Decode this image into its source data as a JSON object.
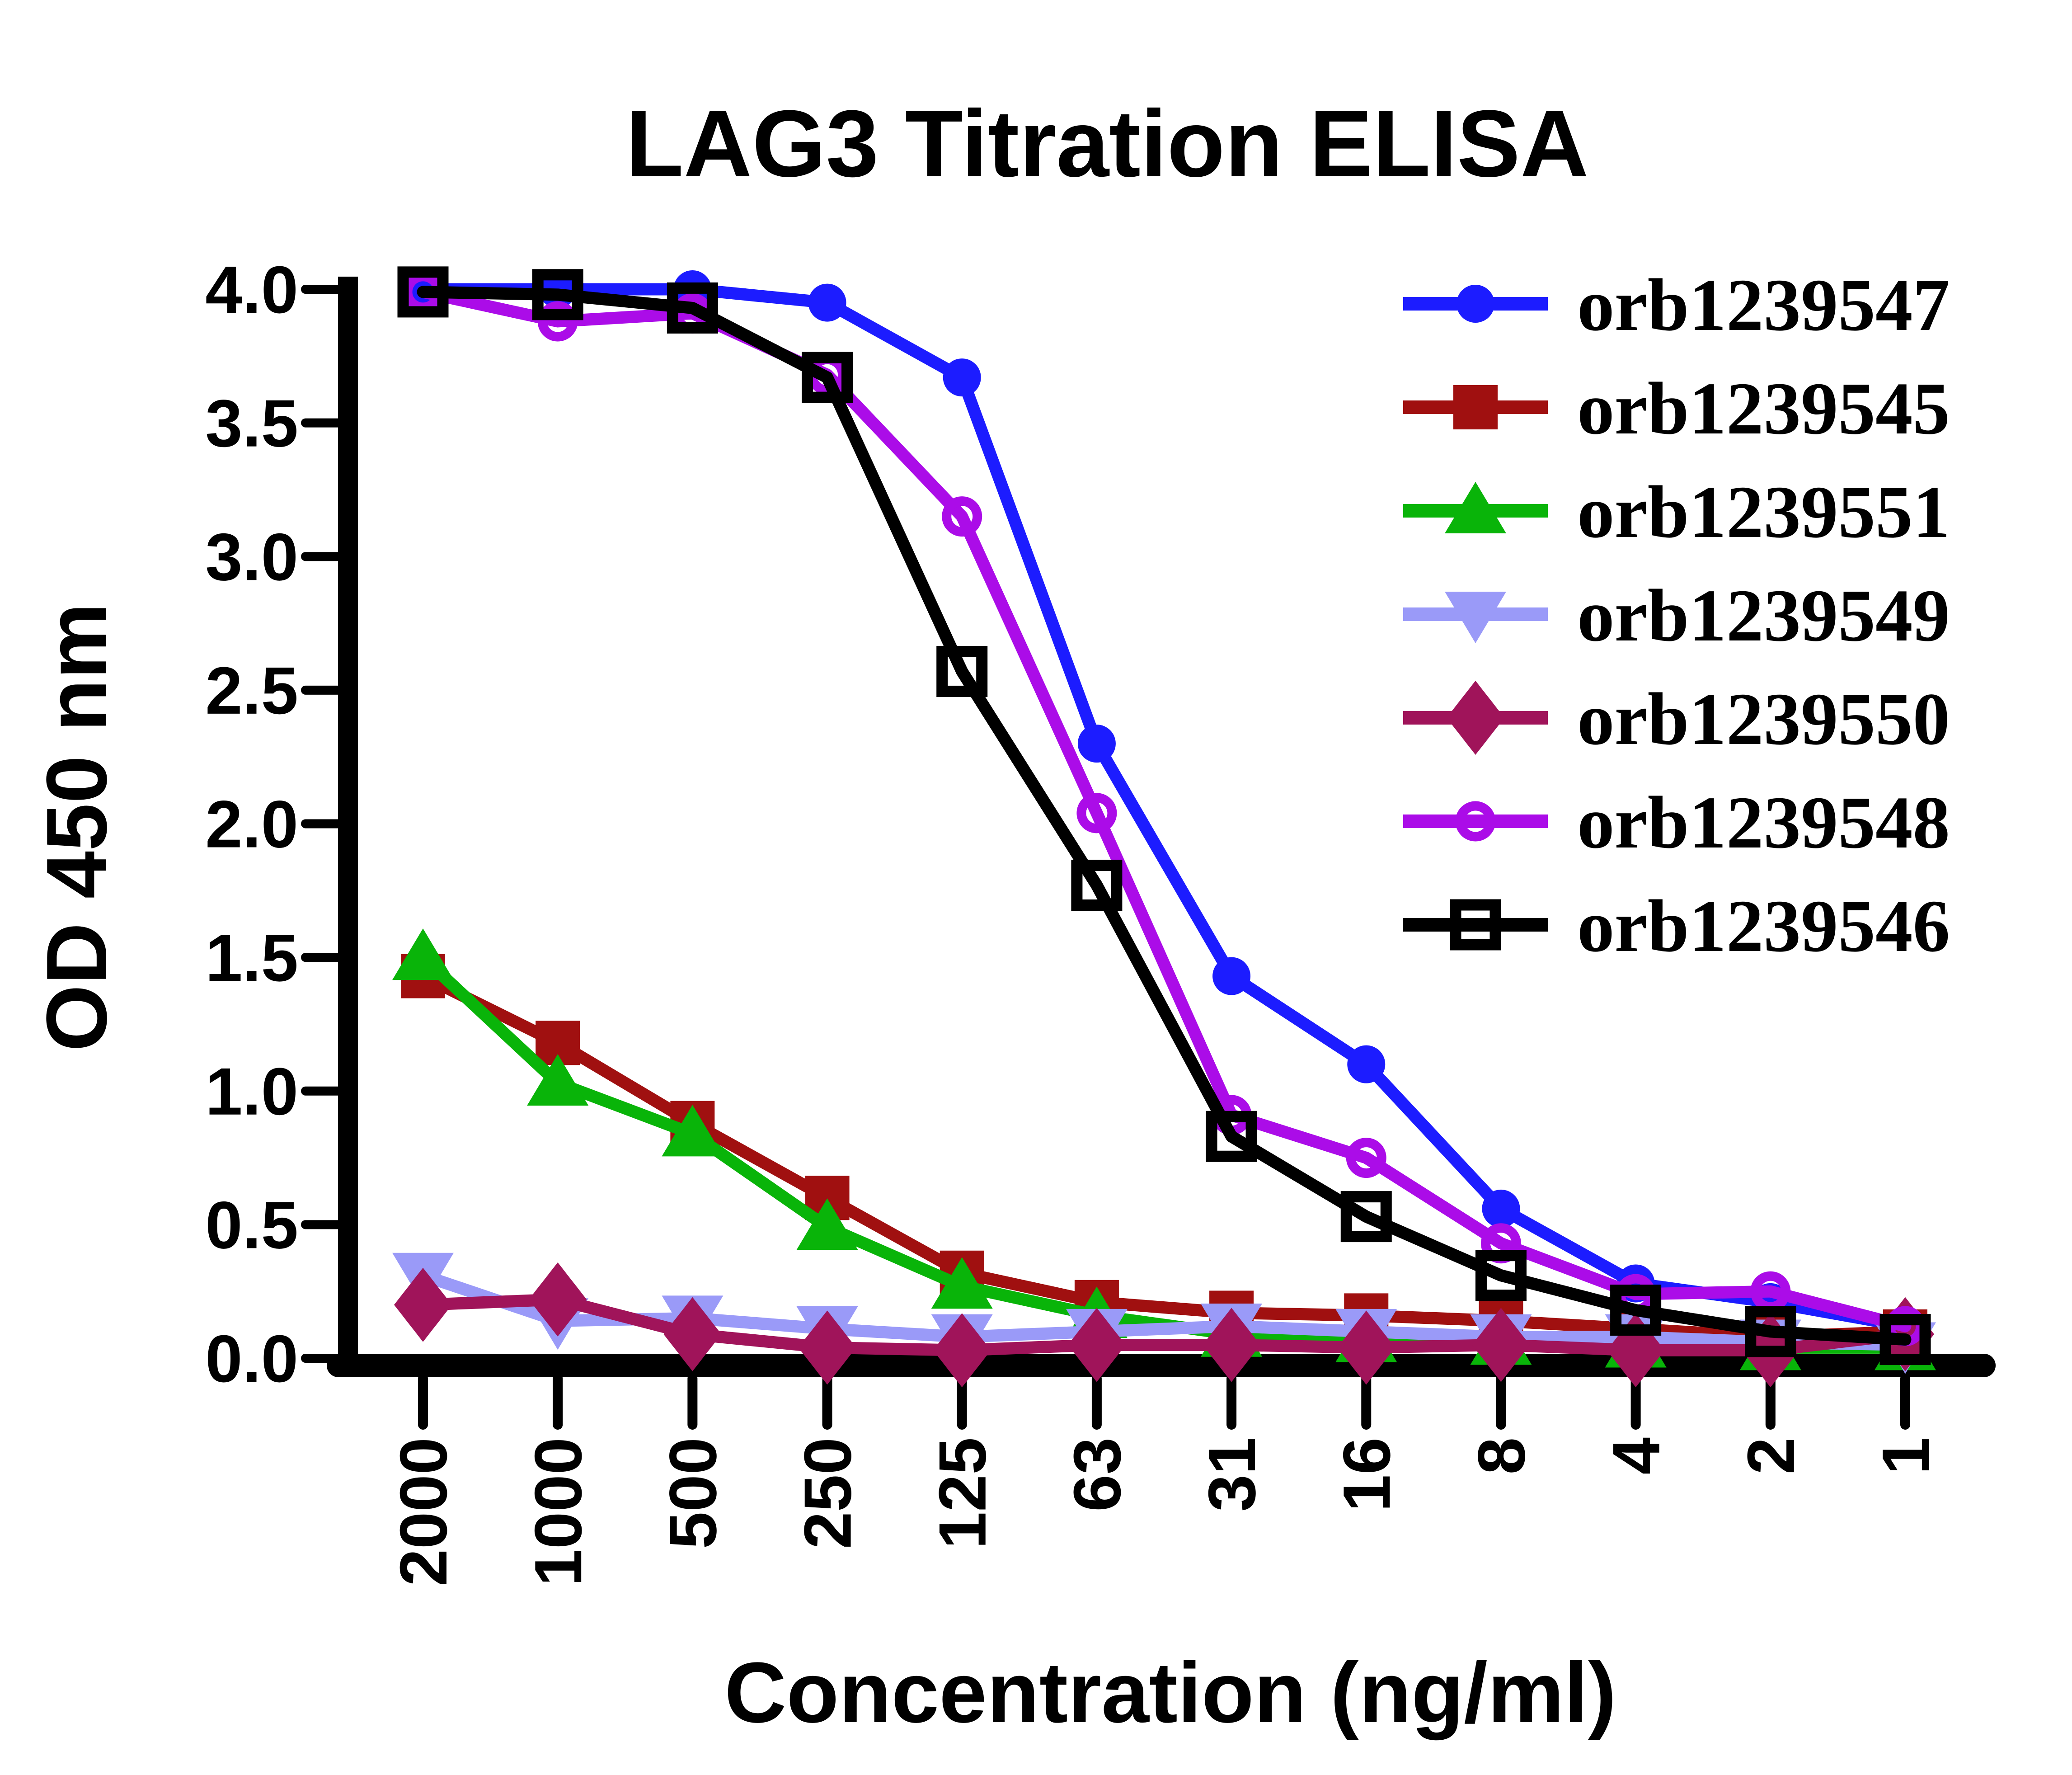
{
  "figure": {
    "background": "#ffffff",
    "axis_color": "#000000"
  },
  "chart_data": {
    "type": "line",
    "title": "LAG3 Titration ELISA",
    "xlabel": "Concentration (ng/ml)",
    "ylabel": "OD 450 nm",
    "categories": [
      "2000",
      "1000",
      "500",
      "250",
      "125",
      "63",
      "31",
      "16",
      "8",
      "4",
      "2",
      "1"
    ],
    "ytick_labels": [
      "0.0",
      "0.5",
      "1.0",
      "1.5",
      "2.0",
      "2.5",
      "3.0",
      "3.5",
      "4.0"
    ],
    "ylim": [
      0.0,
      4.0
    ],
    "grid": false,
    "legend_position": "right",
    "series": [
      {
        "name": "orb1239547",
        "color": "#1c1cff",
        "marker": "circle-filled",
        "values": [
          4.0,
          4.0,
          4.0,
          3.95,
          3.67,
          2.3,
          1.43,
          1.1,
          0.56,
          0.28,
          0.21,
          0.12
        ]
      },
      {
        "name": "orb1239545",
        "color": "#a01010",
        "marker": "square-filled",
        "values": [
          1.43,
          1.18,
          0.88,
          0.6,
          0.32,
          0.21,
          0.17,
          0.16,
          0.14,
          0.11,
          0.08,
          0.1
        ]
      },
      {
        "name": "orb1239551",
        "color": "#09b409",
        "marker": "triangle-up-filled",
        "values": [
          1.5,
          1.03,
          0.84,
          0.49,
          0.27,
          0.16,
          0.09,
          0.07,
          0.06,
          0.05,
          0.04,
          0.04
        ]
      },
      {
        "name": "orb1239549",
        "color": "#9a9af8",
        "marker": "triangle-down-filled",
        "values": [
          0.31,
          0.14,
          0.15,
          0.11,
          0.08,
          0.1,
          0.12,
          0.1,
          0.08,
          0.08,
          0.06,
          0.05
        ]
      },
      {
        "name": "orb1239550",
        "color": "#a0145a",
        "marker": "diamond-filled",
        "values": [
          0.2,
          0.22,
          0.09,
          0.04,
          0.03,
          0.05,
          0.05,
          0.04,
          0.05,
          0.03,
          0.03,
          0.09
        ]
      },
      {
        "name": "orb1239548",
        "color": "#ab0ce8",
        "marker": "circle-open",
        "values": [
          3.99,
          3.88,
          3.91,
          3.68,
          3.15,
          2.04,
          0.91,
          0.75,
          0.43,
          0.24,
          0.25,
          0.12
        ]
      },
      {
        "name": "orb1239546",
        "color": "#000000",
        "marker": "square-open",
        "values": [
          3.99,
          3.98,
          3.93,
          3.67,
          2.57,
          1.77,
          0.83,
          0.53,
          0.31,
          0.18,
          0.1,
          0.07
        ]
      }
    ]
  }
}
